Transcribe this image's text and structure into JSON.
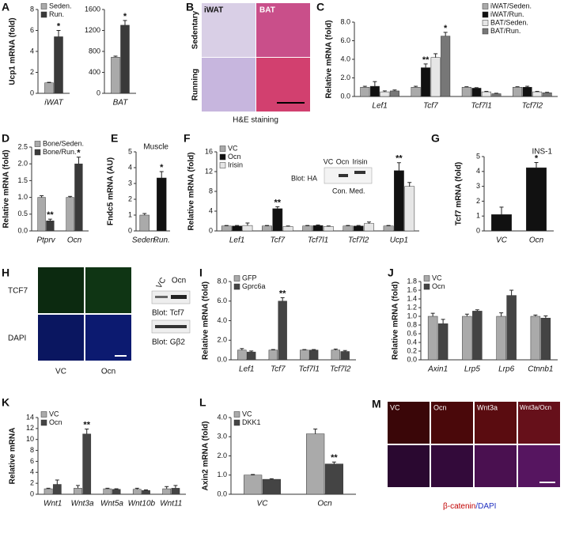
{
  "chart_data": [
    {
      "type": "bar",
      "panel": "A",
      "ylabel": "Ucp1 mRNA (fold)",
      "categories": [
        "iWAT"
      ],
      "ylim": [
        0,
        8
      ],
      "yticks": [
        0,
        2,
        4,
        6,
        8
      ],
      "legend": "upper left",
      "series": [
        {
          "name": "Seden.",
          "color": "#aaaaaa",
          "values": [
            1.0
          ],
          "errors": [
            0.05
          ],
          "significance": [
            null
          ]
        },
        {
          "name": "Run.",
          "color": "#3a3a3a",
          "values": [
            5.4
          ],
          "errors": [
            0.6
          ],
          "significance": [
            "*"
          ]
        }
      ]
    },
    {
      "type": "bar",
      "categories": [
        "BAT"
      ],
      "ylim": [
        0,
        1600
      ],
      "yticks": [
        0,
        400,
        800,
        1200,
        1600
      ],
      "series": [
        {
          "color": "#aaaaaa",
          "values": [
            690
          ],
          "errors": [
            20
          ],
          "significance": [
            null
          ]
        },
        {
          "color": "#3a3a3a",
          "values": [
            1300
          ],
          "errors": [
            90
          ],
          "significance": [
            "*"
          ]
        }
      ]
    },
    {
      "type": "bar",
      "panel": "C",
      "ylabel": "Relative mRNA (fold)",
      "categories": [
        "Lef1",
        "Tcf7",
        "Tcf7l1",
        "Tcf7l2"
      ],
      "legend": "upper right",
      "ylim": [
        0,
        8
      ],
      "yticks": [
        {
          "value": 0,
          "label": "0.0"
        },
        {
          "value": 2,
          "label": "2.0"
        },
        {
          "value": 4,
          "label": "4.0"
        },
        {
          "value": 6,
          "label": "6.0"
        },
        {
          "value": 8,
          "label": "8.0"
        }
      ],
      "series": [
        {
          "name": "iWAT/Seden.",
          "color": "#aaaaaa",
          "values": [
            1.0,
            1.0,
            1.0,
            1.0
          ],
          "errors": [
            0.1,
            0.1,
            0.05,
            0.05
          ],
          "significance": [
            null,
            null,
            null,
            null
          ]
        },
        {
          "name": "iWAT/Run.",
          "color": "#111111",
          "values": [
            1.1,
            3.1,
            0.9,
            1.0
          ],
          "errors": [
            0.5,
            0.4,
            0.05,
            0.1
          ],
          "significance": [
            null,
            "**",
            null,
            null
          ]
        },
        {
          "name": "BAT/Seden.",
          "color": "#e6e6e6",
          "values": [
            0.5,
            4.2,
            0.5,
            0.5
          ],
          "errors": [
            0.1,
            0.4,
            0.05,
            0.05
          ],
          "significance": [
            null,
            null,
            null,
            null
          ]
        },
        {
          "name": "BAT/Run.",
          "color": "#777777",
          "values": [
            0.6,
            6.5,
            0.3,
            0.4
          ],
          "errors": [
            0.1,
            0.4,
            0.05,
            0.05
          ],
          "significance": [
            null,
            "*",
            null,
            null
          ]
        }
      ]
    },
    {
      "type": "bar",
      "panel": "D",
      "ylabel": "Relative mRNA (fold)",
      "categories": [
        "Ptprv",
        "Ocn"
      ],
      "legend": "upper left",
      "ylim": [
        0,
        2.5
      ],
      "yticks": [
        {
          "value": 0,
          "label": "0.0"
        },
        0.5,
        {
          "value": 1,
          "label": "1.0"
        },
        1.5,
        {
          "value": 2,
          "label": "2.0"
        },
        2.5
      ],
      "series": [
        {
          "name": "Bone/Seden.",
          "color": "#aaaaaa",
          "values": [
            1.0,
            1.0
          ],
          "errors": [
            0.05,
            0.03
          ],
          "significance": [
            null,
            null
          ]
        },
        {
          "name": "Bone/Run.",
          "color": "#3a3a3a",
          "values": [
            0.3,
            2.0
          ],
          "errors": [
            0.05,
            0.2
          ],
          "significance": [
            "**",
            "*"
          ]
        }
      ]
    },
    {
      "type": "bar",
      "panel": "E",
      "title": "Muscle",
      "ylabel": "Fndc5 mRNA (AU)",
      "categories": [
        "Seden.",
        "Run."
      ],
      "ylim": [
        0,
        5
      ],
      "yticks": [
        0,
        1,
        2,
        3,
        4,
        5
      ],
      "series": [
        {
          "colors": [
            "#aaaaaa",
            "#111111"
          ],
          "values": [
            1.0,
            3.35
          ],
          "errors": [
            0.1,
            0.4
          ],
          "significance": [
            null,
            "*"
          ]
        }
      ]
    },
    {
      "type": "bar",
      "panel": "F",
      "ylabel": "Relative mRNA (fold)",
      "categories": [
        "Lef1",
        "Tcf7",
        "Tcf7l1",
        "Tcf7l2",
        "Ucp1"
      ],
      "legend": "upper left",
      "ylim": [
        0,
        16
      ],
      "yticks": [
        0,
        4,
        8,
        12,
        16
      ],
      "series": [
        {
          "name": "VC",
          "color": "#aaaaaa",
          "values": [
            1.0,
            1.0,
            1.0,
            1.0,
            1.0
          ],
          "errors": [
            0.1,
            0.1,
            0.1,
            0.1,
            0.1
          ],
          "significance": [
            null,
            null,
            null,
            null,
            null
          ]
        },
        {
          "name": "Ocn",
          "color": "#111111",
          "values": [
            1.0,
            4.5,
            1.1,
            1.0,
            12.2
          ],
          "errors": [
            0.1,
            0.4,
            0.1,
            0.1,
            1.6
          ],
          "significance": [
            null,
            "**",
            null,
            null,
            "**"
          ]
        },
        {
          "name": "Irisin",
          "color": "#e6e6e6",
          "values": [
            1.1,
            0.9,
            0.9,
            1.5,
            9.0
          ],
          "errors": [
            0.5,
            0.1,
            0.1,
            0.3,
            0.8
          ],
          "significance": [
            null,
            null,
            null,
            null,
            null
          ]
        }
      ],
      "inset": {
        "lanes": [
          "VC",
          "Ocn",
          "Irisin"
        ],
        "blot": "Blot: HA",
        "caption": "Con. Med."
      }
    },
    {
      "type": "bar",
      "panel": "G",
      "title": "INS-1",
      "ylabel": "Tcf7 mRNA (fold)",
      "categories": [
        "VC",
        "Ocn"
      ],
      "ylim": [
        0,
        5
      ],
      "yticks": [
        0,
        1,
        2,
        3,
        4,
        5
      ],
      "series": [
        {
          "colors": [
            "#111111",
            "#111111"
          ],
          "values": [
            1.1,
            4.25
          ],
          "errors": [
            0.5,
            0.35
          ],
          "significance": [
            null,
            "*"
          ]
        }
      ]
    },
    {
      "type": "bar",
      "panel": "I",
      "ylabel": "Relative mRNA (fold)",
      "categories": [
        "Lef1",
        "Tcf7",
        "Tcf7l1",
        "Tcf7l2"
      ],
      "legend": "upper left",
      "ylim": [
        0,
        8
      ],
      "yticks": [
        {
          "value": 0,
          "label": "0.0"
        },
        {
          "value": 2,
          "label": "2.0"
        },
        {
          "value": 4,
          "label": "4.0"
        },
        {
          "value": 6,
          "label": "6.0"
        },
        {
          "value": 8,
          "label": "8.0"
        }
      ],
      "series": [
        {
          "name": "GFP",
          "color": "#aaaaaa",
          "values": [
            1.0,
            1.0,
            1.0,
            1.0
          ],
          "errors": [
            0.15,
            0.05,
            0.05,
            0.1
          ],
          "significance": [
            null,
            null,
            null,
            null
          ]
        },
        {
          "name": "Gprc6a",
          "color": "#444444",
          "values": [
            0.8,
            6.0,
            1.0,
            0.85
          ],
          "errors": [
            0.1,
            0.35,
            0.05,
            0.1
          ],
          "significance": [
            null,
            "**",
            null,
            null
          ]
        }
      ]
    },
    {
      "type": "bar",
      "panel": "J",
      "ylabel": "Relative mRNA (fold)",
      "categories": [
        "Axin1",
        "Lrp5",
        "Lrp6",
        "Ctnnb1"
      ],
      "legend": "upper left",
      "ylim": [
        0,
        1.8
      ],
      "yticks": [
        {
          "value": 0,
          "label": "0.0"
        },
        0.2,
        0.4,
        0.6,
        0.8,
        {
          "value": 1,
          "label": "1.0"
        },
        1.2,
        1.4,
        1.6,
        1.8
      ],
      "series": [
        {
          "name": "VC",
          "color": "#aaaaaa",
          "values": [
            1.0,
            1.0,
            1.0,
            1.0
          ],
          "errors": [
            0.07,
            0.05,
            0.08,
            0.03
          ],
          "significance": [
            null,
            null,
            null,
            null
          ]
        },
        {
          "name": "Ocn",
          "color": "#444444",
          "values": [
            0.83,
            1.12,
            1.48,
            0.96
          ],
          "errors": [
            0.1,
            0.03,
            0.12,
            0.05
          ],
          "significance": [
            null,
            null,
            null,
            null
          ]
        }
      ]
    },
    {
      "type": "bar",
      "panel": "K",
      "ylabel": "Relative mRNA",
      "categories": [
        "Wnt1",
        "Wnt3a",
        "Wnt5a",
        "Wnt10b",
        "Wnt11"
      ],
      "legend": "upper left",
      "ylim": [
        0,
        14
      ],
      "yticks": [
        0,
        2,
        4,
        6,
        8,
        10,
        12,
        14
      ],
      "series": [
        {
          "name": "VC",
          "color": "#aaaaaa",
          "values": [
            1.0,
            1.1,
            1.0,
            0.9,
            1.0
          ],
          "errors": [
            0.1,
            0.5,
            0.1,
            0.2,
            0.4
          ],
          "significance": [
            null,
            null,
            null,
            null,
            null
          ]
        },
        {
          "name": "Ocn",
          "color": "#444444",
          "values": [
            1.8,
            11.0,
            0.9,
            0.7,
            1.1
          ],
          "errors": [
            0.8,
            0.9,
            0.1,
            0.1,
            0.5
          ],
          "significance": [
            null,
            "**",
            null,
            null,
            null
          ]
        }
      ]
    },
    {
      "type": "bar",
      "panel": "L",
      "ylabel": "Axin2 mRNA (fold)",
      "categories": [
        "VC",
        "Ocn"
      ],
      "legend": "upper left",
      "ylim": [
        0,
        4
      ],
      "yticks": [
        {
          "value": 0,
          "label": "0.0"
        },
        {
          "value": 1,
          "label": "1.0"
        },
        {
          "value": 2,
          "label": "2.0"
        },
        {
          "value": 3,
          "label": "3.0"
        },
        {
          "value": 4,
          "label": "4.0"
        }
      ],
      "series": [
        {
          "name": "VC",
          "color": "#aaaaaa",
          "values": [
            1.0,
            3.15
          ],
          "errors": [
            0.03,
            0.25
          ],
          "significance": [
            null,
            null
          ]
        },
        {
          "name": "DKK1",
          "color": "#444444",
          "values": [
            0.78,
            1.58
          ],
          "errors": [
            0.03,
            0.1
          ],
          "significance": [
            null,
            "**"
          ]
        }
      ]
    }
  ],
  "images": {
    "B": {
      "panel": "B",
      "columns": [
        "iWAT",
        "BAT"
      ],
      "rows": [
        "Sedentary",
        "Running"
      ],
      "caption": "H&E staining"
    },
    "H": {
      "panel": "H",
      "rows": [
        "TCF7",
        "DAPI"
      ],
      "columns": [
        "VC",
        "Ocn"
      ],
      "blot_lanes": [
        "VC",
        "Ocn"
      ],
      "blots": [
        "Blot: Tcf7",
        "Blot: Gβ2"
      ]
    },
    "M": {
      "panel": "M",
      "columns": [
        "VC",
        "Ocn",
        "Wnt3a",
        "Wnt3a/Ocn"
      ],
      "caption": [
        "β-catenin",
        "/DAPI"
      ]
    }
  }
}
